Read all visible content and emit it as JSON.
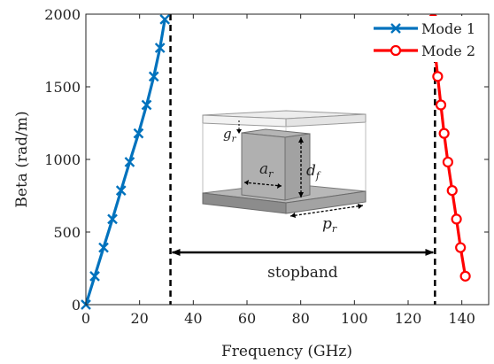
{
  "chart_data": {
    "type": "line",
    "xlabel": "Frequency (GHz)",
    "ylabel": "Beta (rad/m)",
    "xlim": [
      0,
      150
    ],
    "ylim": [
      0,
      2000
    ],
    "x_ticks": [
      0,
      20,
      40,
      60,
      80,
      100,
      120,
      140
    ],
    "y_ticks": [
      0,
      500,
      1000,
      1500,
      2000
    ],
    "grid": false,
    "legend_position": "top-right",
    "series": [
      {
        "name": "Mode 1",
        "color": "#0072BD",
        "marker": "x",
        "points": [
          [
            0.0,
            0
          ],
          [
            3.3,
            196
          ],
          [
            6.6,
            393
          ],
          [
            9.9,
            589
          ],
          [
            13.1,
            786
          ],
          [
            16.3,
            982
          ],
          [
            19.6,
            1179
          ],
          [
            22.6,
            1375
          ],
          [
            25.3,
            1571
          ],
          [
            27.6,
            1768
          ],
          [
            29.4,
            1964
          ]
        ]
      },
      {
        "name": "Mode 2",
        "color": "#FF0000",
        "marker": "o",
        "points": [
          [
            141.3,
            196
          ],
          [
            139.5,
            393
          ],
          [
            138.0,
            589
          ],
          [
            136.4,
            786
          ],
          [
            134.8,
            982
          ],
          [
            133.4,
            1179
          ],
          [
            132.2,
            1375
          ],
          [
            131.0,
            1571
          ],
          [
            129.9,
            1768
          ],
          [
            129.3,
            1964
          ]
        ]
      }
    ],
    "stopband": {
      "from": 31.5,
      "to": 130.0,
      "label": "stopband",
      "arrow_at": 360
    },
    "inset_labels": {
      "gap": "g",
      "gap_sub": "r",
      "width": "a",
      "width_sub": "r",
      "height": "d",
      "height_sub": "f",
      "period": "p",
      "period_sub": "r"
    },
    "colors": {
      "axis": "#222222",
      "guide_line": "#000000"
    }
  }
}
